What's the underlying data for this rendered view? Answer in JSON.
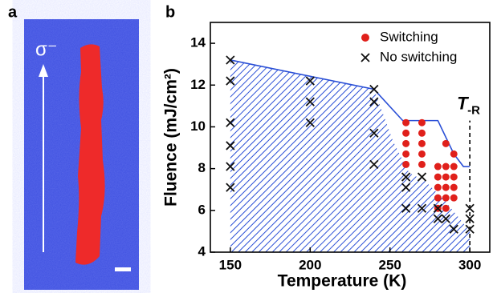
{
  "panel_labels": [
    "a",
    "b"
  ],
  "panel_a": {
    "annotation": "σ⁻"
  },
  "chart_data": {
    "type": "scatter",
    "xlabel": "Temperature (K)",
    "ylabel": "Fluence (mJ/cm²)",
    "xlim": [
      137.5,
      312.5
    ],
    "ylim": [
      4,
      15
    ],
    "xticks": [
      150,
      200,
      250,
      300
    ],
    "yticks": [
      4,
      6,
      8,
      10,
      12,
      14
    ],
    "legend": "upper right",
    "series": [
      {
        "name": "Switching",
        "color": "#e0201b",
        "marker": "dot",
        "x": [
          260,
          260,
          260,
          260,
          260,
          270,
          270,
          270,
          270,
          270,
          280,
          280,
          280,
          280,
          280,
          285,
          285,
          285,
          285,
          285,
          285,
          290,
          290,
          290,
          290,
          290
        ],
        "values": [
          10.2,
          9.7,
          9.2,
          8.7,
          8.2,
          10.2,
          9.7,
          9.2,
          8.7,
          8.2,
          8.1,
          7.6,
          7.1,
          6.6,
          6.1,
          9.2,
          8.1,
          7.6,
          7.1,
          6.6,
          6.1,
          8.7,
          8.1,
          7.6,
          7.1,
          6.6
        ]
      },
      {
        "name": "No switching",
        "color": "#111111",
        "marker": "cross",
        "x": [
          150,
          150,
          150,
          150,
          150,
          150,
          200,
          200,
          200,
          240,
          240,
          240,
          240,
          260,
          260,
          260,
          270,
          270,
          280,
          280,
          285,
          290,
          300,
          300,
          300
        ],
        "values": [
          13.2,
          12.2,
          10.2,
          9.1,
          8.1,
          7.1,
          12.2,
          11.2,
          10.2,
          11.8,
          11.2,
          9.7,
          8.2,
          7.6,
          7.1,
          6.1,
          7.6,
          6.1,
          6.1,
          5.6,
          5.6,
          5.1,
          6.1,
          5.6,
          5.1
        ]
      }
    ],
    "boundary": {
      "color": "#2a4fd6",
      "x": [
        150,
        240,
        258,
        280,
        290,
        296,
        300
      ],
      "values": [
        13.2,
        11.8,
        10.3,
        10.3,
        8.7,
        8.1,
        8.1
      ]
    },
    "region": {
      "color": "#2a4fd6",
      "x": [
        150,
        150,
        240,
        252,
        262,
        272,
        284,
        300,
        300
      ],
      "values": [
        4,
        13.2,
        11.8,
        9.3,
        7.8,
        7.4,
        6.5,
        5.0,
        4
      ]
    },
    "marker_line": {
      "x": 300,
      "values": [
        4,
        10.3
      ]
    },
    "annotation": {
      "text": "T",
      "subscript": "-R"
    }
  }
}
